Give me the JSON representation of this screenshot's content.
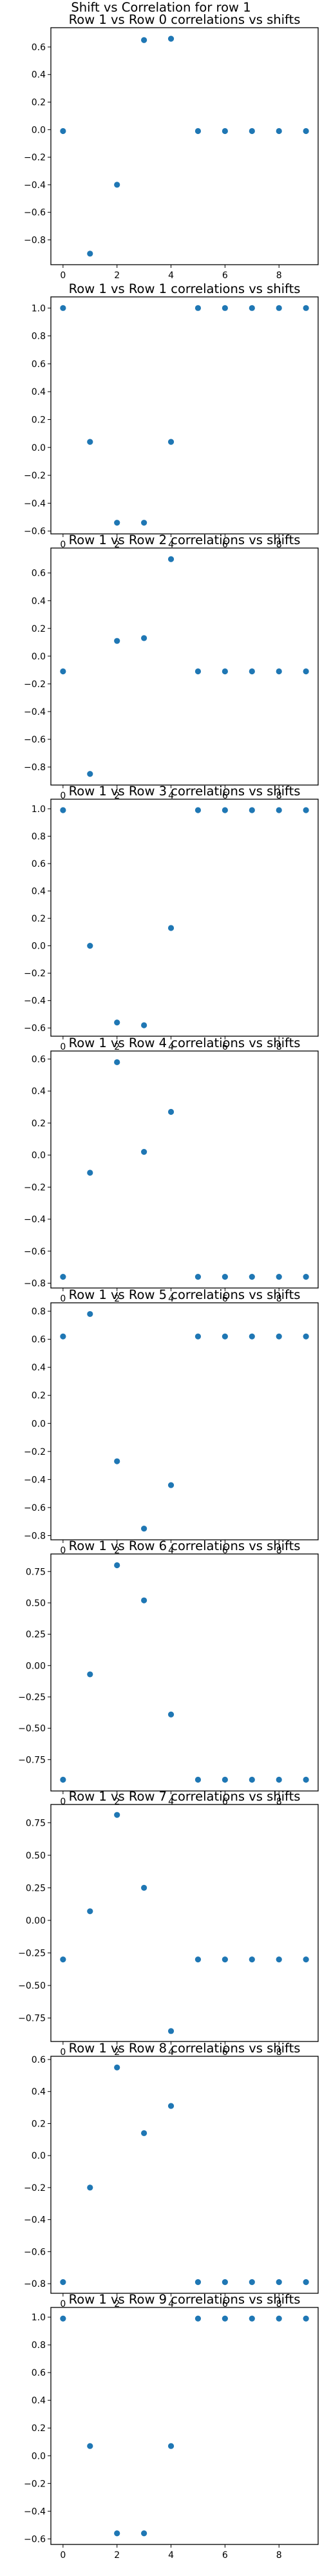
{
  "suptitle": "Shift vs Correlation for row 1",
  "marker_color": "#1f77b4",
  "chart_data": [
    {
      "type": "scatter",
      "title": "Row 1 vs Row 0 correlations vs shifts",
      "x": [
        0,
        1,
        2,
        3,
        4,
        5,
        6,
        7,
        8,
        9
      ],
      "y": [
        -0.01,
        -0.9,
        -0.4,
        0.65,
        0.66,
        -0.01,
        -0.01,
        -0.01,
        -0.01,
        -0.01
      ],
      "xticks": [
        0,
        2,
        4,
        6,
        8
      ],
      "yticks": [
        0.6,
        0.4,
        0.2,
        0.0,
        -0.2,
        -0.4,
        -0.6,
        -0.8
      ],
      "ytick_labels": [
        "0.6",
        "0.4",
        "0.2",
        "0.0",
        "−0.2",
        "−0.4",
        "−0.6",
        "−0.8"
      ],
      "xlim": [
        -0.45,
        9.45
      ],
      "ylim": [
        -0.98,
        0.74
      ]
    },
    {
      "type": "scatter",
      "title": "Row 1 vs Row 1 correlations vs shifts",
      "x": [
        0,
        1,
        2,
        3,
        4,
        5,
        6,
        7,
        8,
        9
      ],
      "y": [
        1.0,
        0.04,
        -0.54,
        -0.54,
        0.04,
        1.0,
        1.0,
        1.0,
        1.0,
        1.0
      ],
      "xticks": [
        0,
        2,
        4,
        6,
        8
      ],
      "yticks": [
        1.0,
        0.8,
        0.6,
        0.4,
        0.2,
        0.0,
        -0.2,
        -0.4,
        -0.6
      ],
      "ytick_labels": [
        "1.0",
        "0.8",
        "0.6",
        "0.4",
        "0.2",
        "0.0",
        "−0.2",
        "−0.4",
        "−0.6"
      ],
      "xlim": [
        -0.45,
        9.45
      ],
      "ylim": [
        -0.62,
        1.08
      ]
    },
    {
      "type": "scatter",
      "title": "Row 1 vs Row 2 correlations vs shifts",
      "x": [
        0,
        1,
        2,
        3,
        4,
        5,
        6,
        7,
        8,
        9
      ],
      "y": [
        -0.11,
        -0.85,
        0.11,
        0.13,
        0.7,
        -0.11,
        -0.11,
        -0.11,
        -0.11,
        -0.11
      ],
      "xticks": [
        0,
        2,
        4,
        6,
        8
      ],
      "yticks": [
        0.6,
        0.4,
        0.2,
        0.0,
        -0.2,
        -0.4,
        -0.6,
        -0.8
      ],
      "ytick_labels": [
        "0.6",
        "0.4",
        "0.2",
        "0.0",
        "−0.2",
        "−0.4",
        "−0.6",
        "−0.8"
      ],
      "xlim": [
        -0.45,
        9.45
      ],
      "ylim": [
        -0.93,
        0.78
      ]
    },
    {
      "type": "scatter",
      "title": "Row 1 vs Row 3 correlations vs shifts",
      "x": [
        0,
        1,
        2,
        3,
        4,
        5,
        6,
        7,
        8,
        9
      ],
      "y": [
        0.99,
        0.0,
        -0.56,
        -0.58,
        0.13,
        0.99,
        0.99,
        0.99,
        0.99,
        0.99
      ],
      "xticks": [
        0,
        2,
        4,
        6,
        8
      ],
      "yticks": [
        1.0,
        0.8,
        0.6,
        0.4,
        0.2,
        0.0,
        -0.2,
        -0.4,
        -0.6
      ],
      "ytick_labels": [
        "1.0",
        "0.8",
        "0.6",
        "0.4",
        "0.2",
        "0.0",
        "−0.2",
        "−0.4",
        "−0.6"
      ],
      "xlim": [
        -0.45,
        9.45
      ],
      "ylim": [
        -0.66,
        1.07
      ]
    },
    {
      "type": "scatter",
      "title": "Row 1 vs Row 4 correlations vs shifts",
      "x": [
        0,
        1,
        2,
        3,
        4,
        5,
        6,
        7,
        8,
        9
      ],
      "y": [
        -0.76,
        -0.11,
        0.58,
        0.02,
        0.27,
        -0.76,
        -0.76,
        -0.76,
        -0.76,
        -0.76
      ],
      "xticks": [
        0,
        2,
        4,
        6,
        8
      ],
      "yticks": [
        0.6,
        0.4,
        0.2,
        0.0,
        -0.2,
        -0.4,
        -0.6,
        -0.8
      ],
      "ytick_labels": [
        "0.6",
        "0.4",
        "0.2",
        "0.0",
        "−0.2",
        "−0.4",
        "−0.6",
        "−0.8"
      ],
      "xlim": [
        -0.45,
        9.45
      ],
      "ylim": [
        -0.83,
        0.65
      ]
    },
    {
      "type": "scatter",
      "title": "Row 1 vs Row 5 correlations vs shifts",
      "x": [
        0,
        1,
        2,
        3,
        4,
        5,
        6,
        7,
        8,
        9
      ],
      "y": [
        0.62,
        0.78,
        -0.27,
        -0.75,
        -0.44,
        0.62,
        0.62,
        0.62,
        0.62,
        0.62
      ],
      "xticks": [
        0,
        2,
        4,
        6,
        8
      ],
      "yticks": [
        0.8,
        0.6,
        0.4,
        0.2,
        0.0,
        -0.2,
        -0.4,
        -0.6,
        -0.8
      ],
      "ytick_labels": [
        "0.8",
        "0.6",
        "0.4",
        "0.2",
        "0.0",
        "−0.2",
        "−0.4",
        "−0.6",
        "−0.8"
      ],
      "xlim": [
        -0.45,
        9.45
      ],
      "ylim": [
        -0.83,
        0.86
      ]
    },
    {
      "type": "scatter",
      "title": "Row 1 vs Row 6 correlations vs shifts",
      "x": [
        0,
        1,
        2,
        3,
        4,
        5,
        6,
        7,
        8,
        9
      ],
      "y": [
        -0.91,
        -0.07,
        0.8,
        0.52,
        -0.39,
        -0.91,
        -0.91,
        -0.91,
        -0.91,
        -0.91
      ],
      "xticks": [
        0,
        2,
        4,
        6,
        8
      ],
      "yticks": [
        0.75,
        0.5,
        0.25,
        0.0,
        -0.25,
        -0.5,
        -0.75
      ],
      "ytick_labels": [
        "0.75",
        "0.50",
        "0.25",
        "0.00",
        "−0.25",
        "−0.50",
        "−0.75"
      ],
      "xlim": [
        -0.45,
        9.45
      ],
      "ylim": [
        -1.0,
        0.89
      ]
    },
    {
      "type": "scatter",
      "title": "Row 1 vs Row 7 correlations vs shifts",
      "x": [
        0,
        1,
        2,
        3,
        4,
        5,
        6,
        7,
        8,
        9
      ],
      "y": [
        -0.3,
        0.07,
        0.81,
        0.25,
        -0.85,
        -0.3,
        -0.3,
        -0.3,
        -0.3,
        -0.3
      ],
      "xticks": [
        0,
        2,
        4,
        6,
        8
      ],
      "yticks": [
        0.75,
        0.5,
        0.25,
        0.0,
        -0.25,
        -0.5,
        -0.75
      ],
      "ytick_labels": [
        "0.75",
        "0.50",
        "0.25",
        "0.00",
        "−0.25",
        "−0.50",
        "−0.75"
      ],
      "xlim": [
        -0.45,
        9.45
      ],
      "ylim": [
        -0.93,
        0.89
      ]
    },
    {
      "type": "scatter",
      "title": "Row 1 vs Row 8 correlations vs shifts",
      "x": [
        0,
        1,
        2,
        3,
        4,
        5,
        6,
        7,
        8,
        9
      ],
      "y": [
        -0.79,
        -0.2,
        0.55,
        0.14,
        0.31,
        -0.79,
        -0.79,
        -0.79,
        -0.79,
        -0.79
      ],
      "xticks": [
        0,
        2,
        4,
        6,
        8
      ],
      "yticks": [
        0.6,
        0.4,
        0.2,
        0.0,
        -0.2,
        -0.4,
        -0.6,
        -0.8
      ],
      "ytick_labels": [
        "0.6",
        "0.4",
        "0.2",
        "0.0",
        "−0.2",
        "−0.4",
        "−0.6",
        "−0.8"
      ],
      "xlim": [
        -0.45,
        9.45
      ],
      "ylim": [
        -0.86,
        0.62
      ]
    },
    {
      "type": "scatter",
      "title": "Row 1 vs Row 9 correlations vs shifts",
      "x": [
        0,
        1,
        2,
        3,
        4,
        5,
        6,
        7,
        8,
        9
      ],
      "y": [
        0.99,
        0.07,
        -0.56,
        -0.56,
        0.07,
        0.99,
        0.99,
        0.99,
        0.99,
        0.99
      ],
      "xticks": [
        0,
        2,
        4,
        6,
        8
      ],
      "yticks": [
        1.0,
        0.8,
        0.6,
        0.4,
        0.2,
        0.0,
        -0.2,
        -0.4,
        -0.6
      ],
      "ytick_labels": [
        "1.0",
        "0.8",
        "0.6",
        "0.4",
        "0.2",
        "0.0",
        "−0.2",
        "−0.4",
        "−0.6"
      ],
      "xlim": [
        -0.45,
        9.45
      ],
      "ylim": [
        -0.64,
        1.07
      ]
    }
  ]
}
